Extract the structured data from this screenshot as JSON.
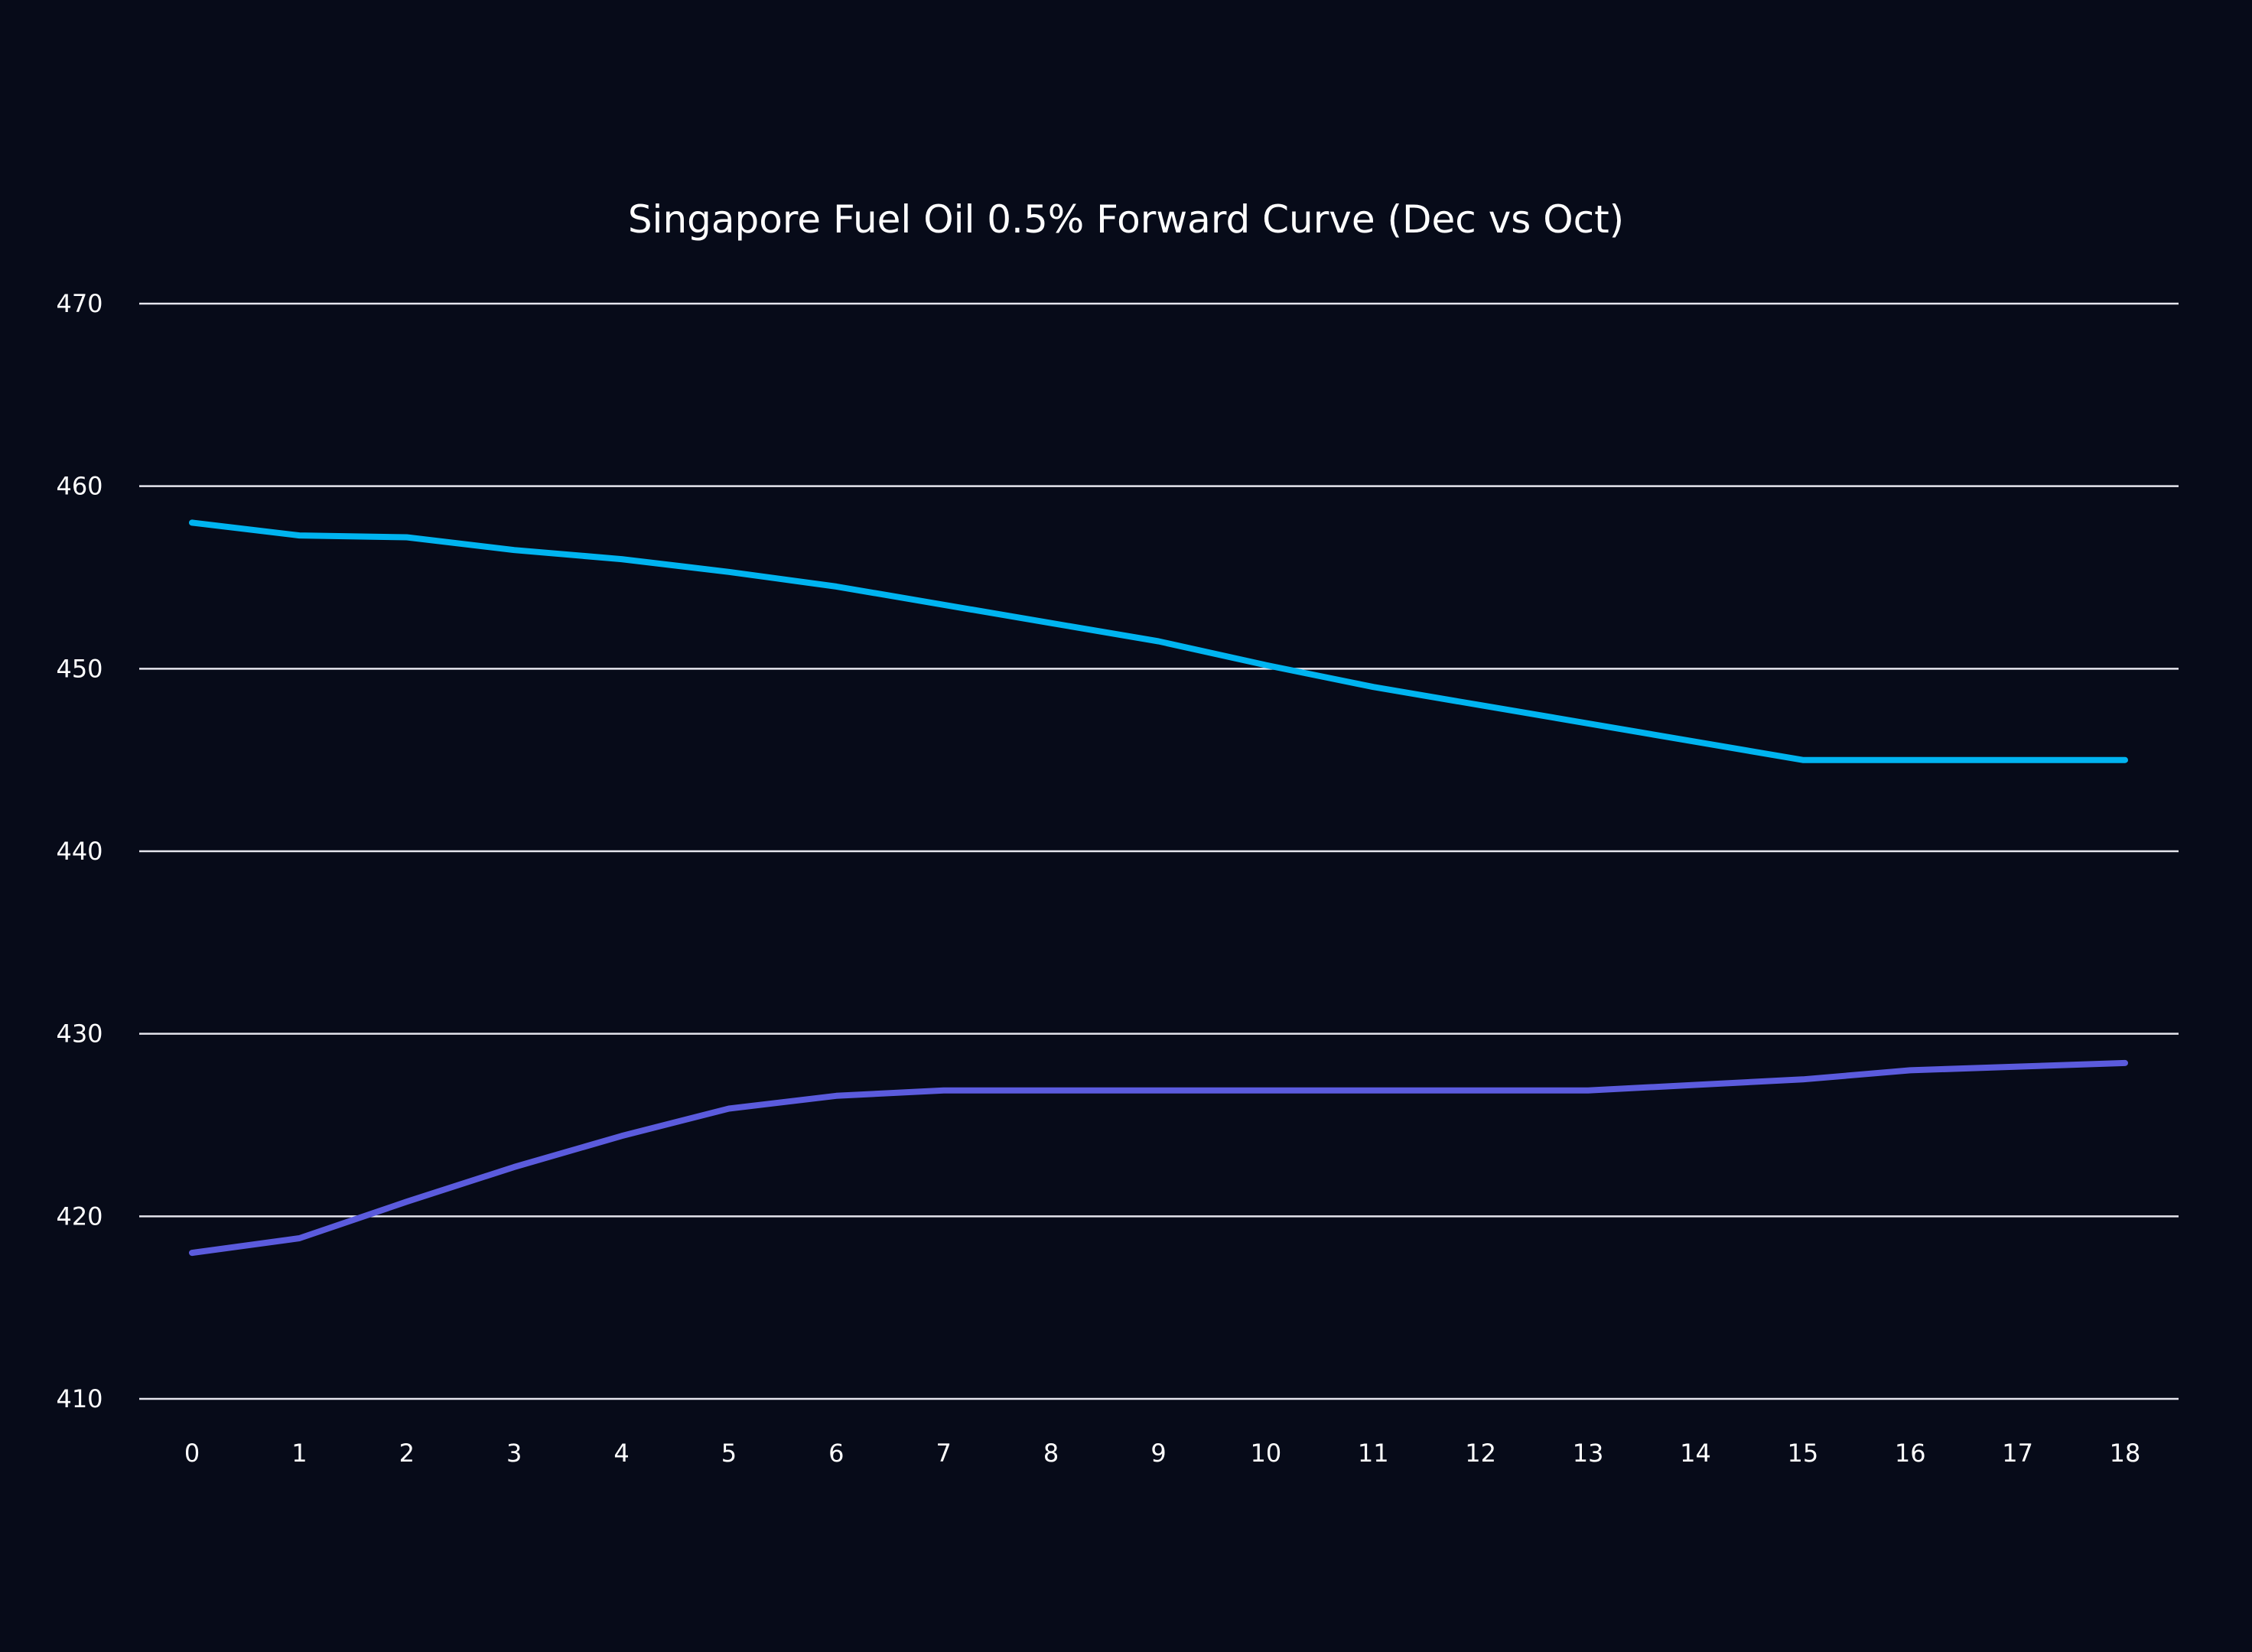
{
  "chart_data": {
    "type": "line",
    "title": "Singapore Fuel Oil 0.5% Forward Curve (Dec vs Oct)",
    "xlabel": "",
    "ylabel": "",
    "x": [
      0,
      1,
      2,
      3,
      4,
      5,
      6,
      7,
      8,
      9,
      10,
      11,
      12,
      13,
      14,
      15,
      16,
      17,
      18
    ],
    "x_tick_labels": [
      "0",
      "1",
      "2",
      "3",
      "4",
      "5",
      "6",
      "7",
      "8",
      "9",
      "10",
      "11",
      "12",
      "13",
      "14",
      "15",
      "16",
      "17",
      "18"
    ],
    "y_ticks": [
      410,
      420,
      430,
      440,
      450,
      460,
      470
    ],
    "y_tick_labels": [
      "410",
      "420",
      "430",
      "440",
      "450",
      "460",
      "470"
    ],
    "ylim": [
      410,
      470
    ],
    "xlim": [
      -0.5,
      18.5
    ],
    "grid": "horizontal",
    "legend": "none",
    "series": [
      {
        "color": "#00b4f0",
        "values": [
          458.0,
          457.3,
          457.2,
          456.5,
          456.0,
          455.3,
          454.5,
          453.5,
          452.5,
          451.5,
          450.2,
          449.0,
          448.0,
          447.0,
          446.0,
          445.0,
          445.0,
          445.0,
          445.0
        ]
      },
      {
        "color": "#5b5bdd",
        "values": [
          418.0,
          418.8,
          420.8,
          422.7,
          424.4,
          425.9,
          426.6,
          426.9,
          426.9,
          426.9,
          426.9,
          426.9,
          426.9,
          426.9,
          427.2,
          427.5,
          428.0,
          428.2,
          428.4
        ]
      }
    ]
  }
}
